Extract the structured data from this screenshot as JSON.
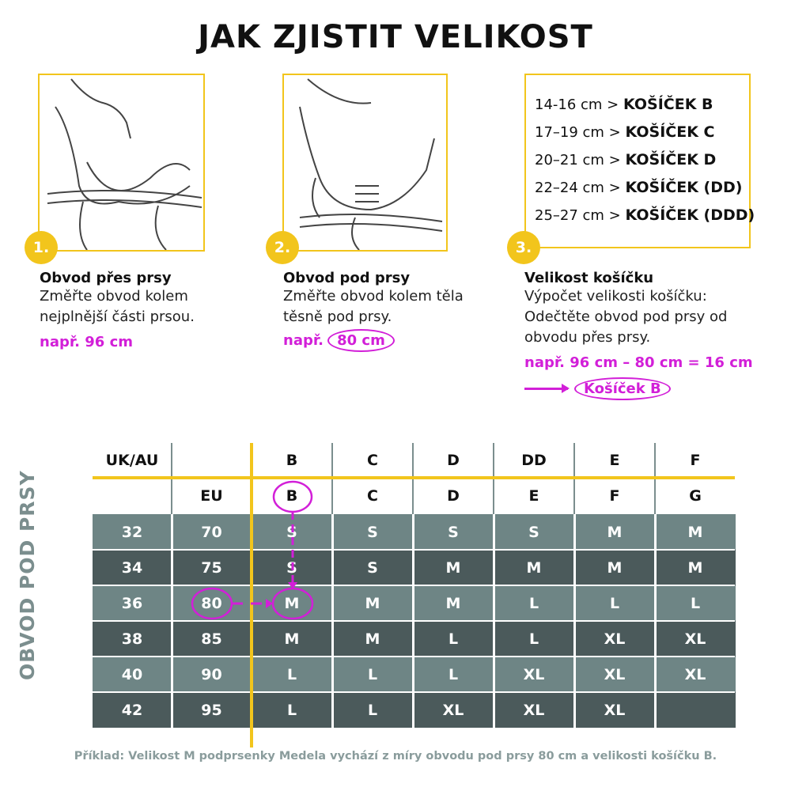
{
  "title": "JAK ZJISTIT VELIKOST",
  "steps": [
    {
      "number": "1.",
      "heading": "Obvod přes prsy",
      "text_lines": [
        "Změřte obvod kolem",
        "nejplnější části prsou."
      ],
      "example": "např. 96 cm"
    },
    {
      "number": "2.",
      "heading": "Obvod pod prsy",
      "text_lines": [
        "Změřte obvod kolem těla",
        "těsně pod prsy."
      ],
      "example_prefix": "např.",
      "example_value": "80 cm"
    },
    {
      "number": "3.",
      "heading": "Velikost košíčku",
      "text_lines": [
        "Výpočet velikosti košíčku:",
        "Odečtěte obvod pod prsy od",
        "obvodu přes prsy."
      ],
      "example": "např. 96 cm – 80 cm = 16 cm",
      "result": "Košíček B"
    }
  ],
  "cup_ranges": [
    {
      "range": "14-16 cm >",
      "cup": "KOŠÍČEK B"
    },
    {
      "range": "17–19 cm >",
      "cup": "KOŠÍČEK C"
    },
    {
      "range": "20–21 cm >",
      "cup": "KOŠÍČEK D"
    },
    {
      "range": "22–24 cm >",
      "cup": "KOŠÍČEK (DD)"
    },
    {
      "range": "25–27 cm >",
      "cup": "KOŠÍČEK (DDD)"
    }
  ],
  "table": {
    "side_label": "OBVOD POD PRSY",
    "uk_header": "UK/AU",
    "eu_header": "EU",
    "uk_cups": [
      "B",
      "C",
      "D",
      "DD",
      "E",
      "F"
    ],
    "eu_cups": [
      "B",
      "C",
      "D",
      "E",
      "F",
      "G"
    ],
    "rows": [
      {
        "uk": "32",
        "eu": "70",
        "sizes": [
          "S",
          "S",
          "S",
          "S",
          "M",
          "M"
        ]
      },
      {
        "uk": "34",
        "eu": "75",
        "sizes": [
          "S",
          "S",
          "M",
          "M",
          "M",
          "M"
        ]
      },
      {
        "uk": "36",
        "eu": "80",
        "sizes": [
          "M",
          "M",
          "M",
          "L",
          "L",
          "L"
        ]
      },
      {
        "uk": "38",
        "eu": "85",
        "sizes": [
          "M",
          "M",
          "L",
          "L",
          "XL",
          "XL"
        ]
      },
      {
        "uk": "40",
        "eu": "90",
        "sizes": [
          "L",
          "L",
          "L",
          "XL",
          "XL",
          "XL"
        ]
      },
      {
        "uk": "42",
        "eu": "95",
        "sizes": [
          "L",
          "L",
          "XL",
          "XL",
          "XL",
          ""
        ]
      }
    ]
  },
  "footer": "Příklad: Velikost M podprsenky Medela vychází z míry obvodu pod prsy 80 cm a velikosti košíčku B.",
  "colors": {
    "accent_yellow": "#f2c51c",
    "highlight_magenta": "#d21fd8",
    "row_light": "#6e8585",
    "row_dark": "#4b5a5b"
  }
}
